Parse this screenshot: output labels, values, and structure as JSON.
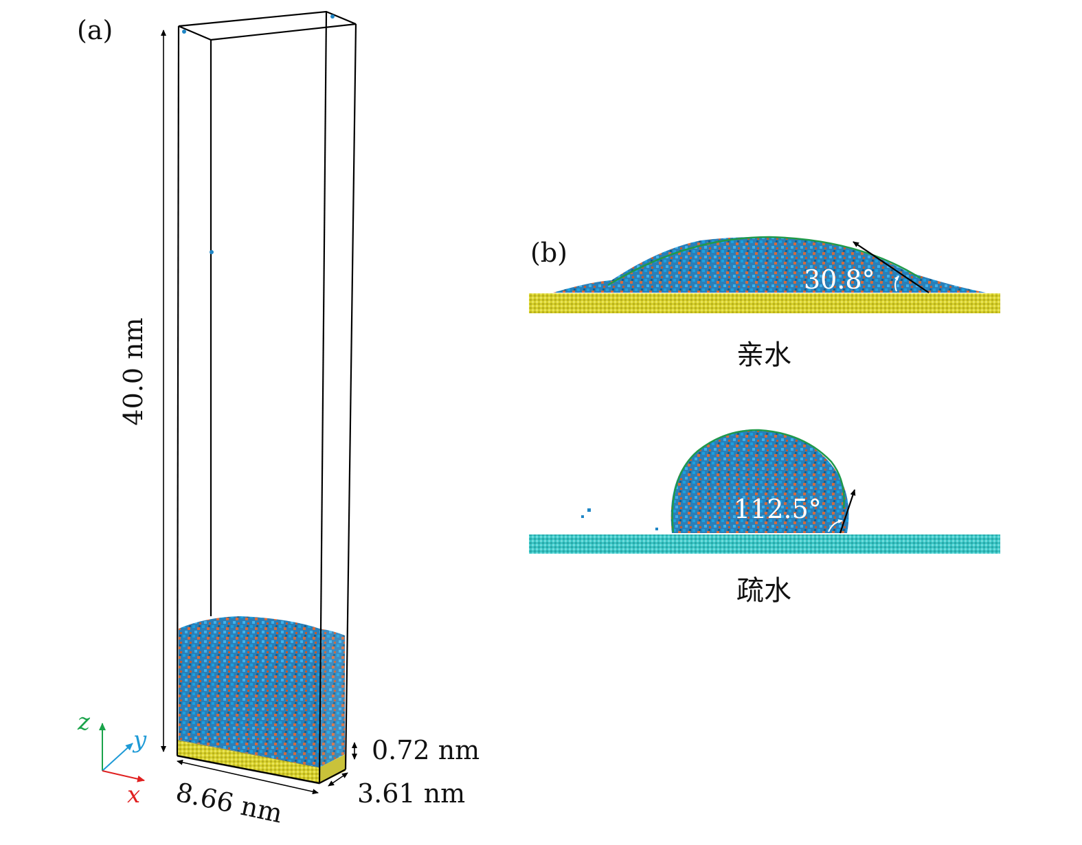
{
  "panel_a": {
    "label": "(a)",
    "dim_height": "40.0 nm",
    "dim_width": "8.66 nm",
    "dim_depth": "3.61 nm",
    "dim_substrate": "0.72 nm",
    "axes": {
      "z": {
        "label": "z",
        "color": "#1aa34a"
      },
      "y": {
        "label": "y",
        "color": "#1e9ad6"
      },
      "x": {
        "label": "x",
        "color": "#e02020"
      }
    }
  },
  "panel_b": {
    "label": "(b)",
    "hydrophilic": {
      "angle_label": "30.8°",
      "caption": "亲水",
      "substrate_color": "#d9d22a"
    },
    "hydrophobic": {
      "angle_label": "112.5°",
      "caption": "疏水",
      "substrate_color": "#3cc6c6"
    }
  },
  "colors": {
    "water_blue": "#1f86c6",
    "water_red": "#d0653a",
    "contour": "#1f9a4a"
  }
}
